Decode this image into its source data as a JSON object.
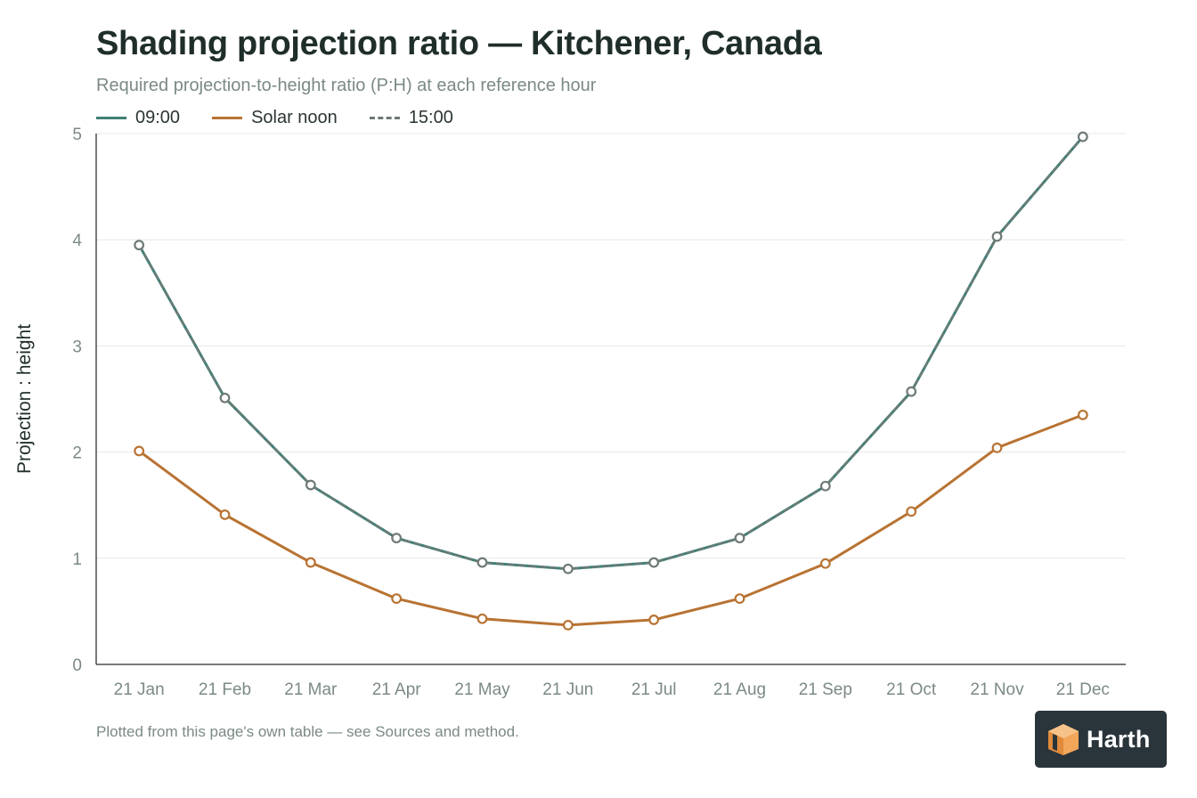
{
  "title": "Shading projection ratio — Kitchener, Canada",
  "subtitle": "Required projection-to-height ratio (P:H) at each reference hour",
  "footnote": "Plotted from this page's own table — see Sources and method.",
  "logo_text": "Harth",
  "colors": {
    "teal": "#3f7f76",
    "orange": "#b87333",
    "gray_dash": "#6f7a76",
    "grid": "#e6e9e8",
    "axis": "#4a4f4d"
  },
  "chart_data": {
    "type": "line",
    "title": "Shading projection ratio — Kitchener, Canada",
    "subtitle": "Required projection-to-height ratio (P:H) at each reference hour",
    "xlabel": "",
    "ylabel": "Projection : height",
    "categories": [
      "21 Jan",
      "21 Feb",
      "21 Mar",
      "21 Apr",
      "21 May",
      "21 Jun",
      "21 Jul",
      "21 Aug",
      "21 Sep",
      "21 Oct",
      "21 Nov",
      "21 Dec"
    ],
    "ylim": [
      0,
      5
    ],
    "yticks": [
      "0",
      "1",
      "2",
      "3",
      "4",
      "5"
    ],
    "grid": true,
    "legend_position": "top-left",
    "series": [
      {
        "name": "09:00",
        "color": "#3f7f76",
        "dash": false,
        "values": [
          3.95,
          2.51,
          1.69,
          1.19,
          0.96,
          0.9,
          0.96,
          1.19,
          1.68,
          2.57,
          4.03,
          4.97
        ]
      },
      {
        "name": "Solar noon",
        "color": "#b87333",
        "dash": false,
        "values": [
          2.01,
          1.41,
          0.96,
          0.62,
          0.43,
          0.37,
          0.42,
          0.62,
          0.95,
          1.44,
          2.04,
          2.35
        ]
      },
      {
        "name": "15:00",
        "color": "#6f7a76",
        "dash": true,
        "values": [
          3.95,
          2.51,
          1.69,
          1.19,
          0.96,
          0.9,
          0.96,
          1.19,
          1.68,
          2.57,
          4.03,
          4.97
        ]
      }
    ]
  }
}
